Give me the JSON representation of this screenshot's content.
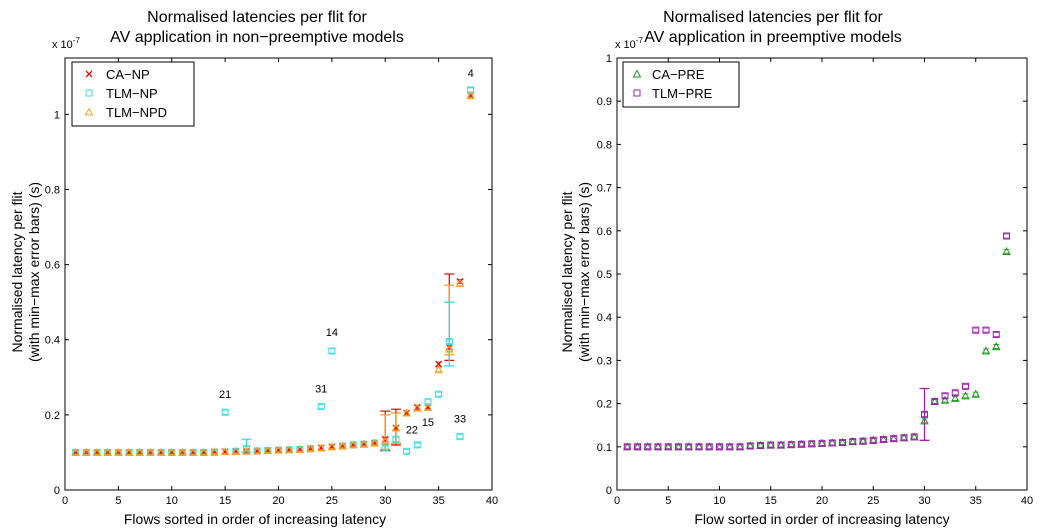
{
  "chart_data": [
    {
      "type": "scatter",
      "title": [
        "Normalised latencies per flit for",
        "AV application in non−preemptive models"
      ],
      "xlabel": "Flows sorted in order of increasing latency",
      "ylabel": [
        "Normalised latency per flit",
        "(with min−max error bars) (s)"
      ],
      "y_scale_label": "x 10",
      "y_scale_exp": "-7",
      "xlim": [
        0,
        40
      ],
      "ylim": [
        0,
        1.15
      ],
      "xticks": [
        0,
        5,
        10,
        15,
        20,
        25,
        30,
        35,
        40
      ],
      "yticks": [
        0,
        0.2,
        0.4,
        0.6,
        0.8,
        1
      ],
      "legend_position": "top-left",
      "series": [
        {
          "name": "CA−NP",
          "marker": "x",
          "color": "#dd1111",
          "points": [
            [
              1,
              0.1
            ],
            [
              2,
              0.1
            ],
            [
              3,
              0.1
            ],
            [
              4,
              0.1
            ],
            [
              5,
              0.1
            ],
            [
              6,
              0.1
            ],
            [
              7,
              0.1
            ],
            [
              8,
              0.1
            ],
            [
              9,
              0.1
            ],
            [
              10,
              0.1
            ],
            [
              11,
              0.1
            ],
            [
              12,
              0.1
            ],
            [
              13,
              0.1
            ],
            [
              14,
              0.102
            ],
            [
              15,
              0.102
            ],
            [
              16,
              0.103
            ],
            [
              17,
              0.103
            ],
            [
              18,
              0.104
            ],
            [
              19,
              0.105
            ],
            [
              20,
              0.106
            ],
            [
              21,
              0.107
            ],
            [
              22,
              0.108
            ],
            [
              23,
              0.11
            ],
            [
              24,
              0.112
            ],
            [
              25,
              0.115
            ],
            [
              26,
              0.117
            ],
            [
              27,
              0.12
            ],
            [
              28,
              0.122
            ],
            [
              29,
              0.125
            ],
            [
              30,
              0.135
            ],
            [
              31,
              0.165
            ],
            [
              32,
              0.205
            ],
            [
              33,
              0.22
            ],
            [
              34,
              0.22
            ],
            [
              35,
              0.335
            ],
            [
              36,
              0.38
            ],
            [
              37,
              0.555
            ],
            [
              38,
              1.05
            ]
          ]
        },
        {
          "name": "TLM−NP",
          "marker": "square",
          "color": "#33dde6",
          "points": [
            [
              1,
              0.1
            ],
            [
              2,
              0.1
            ],
            [
              3,
              0.1
            ],
            [
              4,
              0.1
            ],
            [
              5,
              0.1
            ],
            [
              6,
              0.1
            ],
            [
              7,
              0.1
            ],
            [
              8,
              0.1
            ],
            [
              9,
              0.1
            ],
            [
              10,
              0.1
            ],
            [
              11,
              0.1
            ],
            [
              12,
              0.1
            ],
            [
              13,
              0.1
            ],
            [
              14,
              0.1
            ],
            [
              15,
              0.207
            ],
            [
              16,
              0.103
            ],
            [
              17,
              0.11
            ],
            [
              18,
              0.104
            ],
            [
              19,
              0.105
            ],
            [
              20,
              0.106
            ],
            [
              21,
              0.107
            ],
            [
              22,
              0.108
            ],
            [
              23,
              0.11
            ],
            [
              24,
              0.222
            ],
            [
              25,
              0.37
            ],
            [
              26,
              0.117
            ],
            [
              27,
              0.12
            ],
            [
              28,
              0.122
            ],
            [
              29,
              0.125
            ],
            [
              30,
              0.112
            ],
            [
              31,
              0.135
            ],
            [
              32,
              0.103
            ],
            [
              33,
              0.12
            ],
            [
              34,
              0.235
            ],
            [
              35,
              0.255
            ],
            [
              36,
              0.395
            ],
            [
              37,
              0.142
            ],
            [
              38,
              1.065
            ]
          ]
        },
        {
          "name": "TLM−NPD",
          "marker": "triangle",
          "color": "#f0a020",
          "points": [
            [
              1,
              0.1
            ],
            [
              2,
              0.1
            ],
            [
              3,
              0.1
            ],
            [
              4,
              0.1
            ],
            [
              5,
              0.1
            ],
            [
              6,
              0.1
            ],
            [
              7,
              0.1
            ],
            [
              8,
              0.1
            ],
            [
              9,
              0.1
            ],
            [
              10,
              0.1
            ],
            [
              11,
              0.1
            ],
            [
              12,
              0.1
            ],
            [
              13,
              0.1
            ],
            [
              14,
              0.102
            ],
            [
              15,
              0.102
            ],
            [
              16,
              0.103
            ],
            [
              17,
              0.103
            ],
            [
              18,
              0.104
            ],
            [
              19,
              0.105
            ],
            [
              20,
              0.106
            ],
            [
              21,
              0.107
            ],
            [
              22,
              0.108
            ],
            [
              23,
              0.11
            ],
            [
              24,
              0.112
            ],
            [
              25,
              0.115
            ],
            [
              26,
              0.117
            ],
            [
              27,
              0.12
            ],
            [
              28,
              0.122
            ],
            [
              29,
              0.125
            ],
            [
              30,
              0.13
            ],
            [
              31,
              0.165
            ],
            [
              32,
              0.205
            ],
            [
              33,
              0.218
            ],
            [
              34,
              0.22
            ],
            [
              35,
              0.32
            ],
            [
              36,
              0.375
            ],
            [
              37,
              0.55
            ],
            [
              38,
              1.05
            ]
          ]
        }
      ],
      "error_bars": [
        {
          "x": 17,
          "lo": 0.1,
          "hi": 0.135,
          "color": "#33dde6"
        },
        {
          "x": 30,
          "lo": 0.105,
          "hi": 0.21,
          "color": "#dd1111"
        },
        {
          "x": 30,
          "lo": 0.108,
          "hi": 0.2,
          "color": "#f0a020"
        },
        {
          "x": 31,
          "lo": 0.12,
          "hi": 0.215,
          "color": "#dd1111"
        },
        {
          "x": 31,
          "lo": 0.125,
          "hi": 0.205,
          "color": "#f0a020"
        },
        {
          "x": 36,
          "lo": 0.345,
          "hi": 0.575,
          "color": "#dd1111"
        },
        {
          "x": 36,
          "lo": 0.36,
          "hi": 0.545,
          "color": "#f0a020"
        },
        {
          "x": 36,
          "lo": 0.33,
          "hi": 0.5,
          "color": "#33dde6"
        }
      ],
      "annotations": [
        {
          "text": "4",
          "x": 38,
          "y": 1.1
        },
        {
          "text": "14",
          "x": 25,
          "y": 0.41
        },
        {
          "text": "21",
          "x": 15,
          "y": 0.245
        },
        {
          "text": "31",
          "x": 24,
          "y": 0.26
        },
        {
          "text": "15",
          "x": 34,
          "y": 0.17
        },
        {
          "text": "22",
          "x": 32.5,
          "y": 0.15
        },
        {
          "text": "33",
          "x": 37,
          "y": 0.18
        }
      ]
    },
    {
      "type": "scatter",
      "title": [
        "Normalised latencies per flit for",
        "AV application in preemptive models"
      ],
      "xlabel": "Flow sorted in order of increasing latency",
      "ylabel": [
        "Normalised latency per flit",
        "(with min−max error bars) (s)"
      ],
      "y_scale_label": "x 10",
      "y_scale_exp": "-7",
      "xlim": [
        0,
        40
      ],
      "ylim": [
        0,
        1.0
      ],
      "xticks": [
        0,
        5,
        10,
        15,
        20,
        25,
        30,
        35,
        40
      ],
      "yticks": [
        0,
        0.1,
        0.2,
        0.3,
        0.4,
        0.5,
        0.6,
        0.7,
        0.8,
        0.9,
        1
      ],
      "legend_position": "top-left",
      "series": [
        {
          "name": "CA−PRE",
          "marker": "triangle",
          "color": "#1a9a1a",
          "points": [
            [
              1,
              0.1
            ],
            [
              2,
              0.1
            ],
            [
              3,
              0.1
            ],
            [
              4,
              0.1
            ],
            [
              5,
              0.1
            ],
            [
              6,
              0.1
            ],
            [
              7,
              0.1
            ],
            [
              8,
              0.1
            ],
            [
              9,
              0.1
            ],
            [
              10,
              0.1
            ],
            [
              11,
              0.1
            ],
            [
              12,
              0.1
            ],
            [
              13,
              0.102
            ],
            [
              14,
              0.103
            ],
            [
              15,
              0.104
            ],
            [
              16,
              0.104
            ],
            [
              17,
              0.105
            ],
            [
              18,
              0.106
            ],
            [
              19,
              0.107
            ],
            [
              20,
              0.108
            ],
            [
              21,
              0.109
            ],
            [
              22,
              0.11
            ],
            [
              23,
              0.112
            ],
            [
              24,
              0.113
            ],
            [
              25,
              0.115
            ],
            [
              26,
              0.117
            ],
            [
              27,
              0.119
            ],
            [
              28,
              0.121
            ],
            [
              29,
              0.123
            ],
            [
              30,
              0.16
            ],
            [
              31,
              0.205
            ],
            [
              32,
              0.208
            ],
            [
              33,
              0.212
            ],
            [
              34,
              0.218
            ],
            [
              35,
              0.222
            ],
            [
              36,
              0.322
            ],
            [
              37,
              0.332
            ],
            [
              38,
              0.552
            ]
          ]
        },
        {
          "name": "TLM−PRE",
          "marker": "square",
          "color": "#a020b0",
          "points": [
            [
              1,
              0.1
            ],
            [
              2,
              0.1
            ],
            [
              3,
              0.1
            ],
            [
              4,
              0.1
            ],
            [
              5,
              0.1
            ],
            [
              6,
              0.1
            ],
            [
              7,
              0.1
            ],
            [
              8,
              0.1
            ],
            [
              9,
              0.1
            ],
            [
              10,
              0.1
            ],
            [
              11,
              0.1
            ],
            [
              12,
              0.1
            ],
            [
              13,
              0.102
            ],
            [
              14,
              0.103
            ],
            [
              15,
              0.104
            ],
            [
              16,
              0.104
            ],
            [
              17,
              0.105
            ],
            [
              18,
              0.106
            ],
            [
              19,
              0.107
            ],
            [
              20,
              0.108
            ],
            [
              21,
              0.109
            ],
            [
              22,
              0.11
            ],
            [
              23,
              0.112
            ],
            [
              24,
              0.113
            ],
            [
              25,
              0.115
            ],
            [
              26,
              0.117
            ],
            [
              27,
              0.119
            ],
            [
              28,
              0.121
            ],
            [
              29,
              0.123
            ],
            [
              30,
              0.175
            ],
            [
              31,
              0.205
            ],
            [
              32,
              0.218
            ],
            [
              33,
              0.225
            ],
            [
              34,
              0.24
            ],
            [
              35,
              0.37
            ],
            [
              36,
              0.37
            ],
            [
              37,
              0.36
            ],
            [
              38,
              0.588
            ]
          ]
        }
      ],
      "error_bars": [
        {
          "x": 30,
          "lo": 0.115,
          "hi": 0.235,
          "color": "#a020b0"
        }
      ],
      "annotations": []
    }
  ]
}
